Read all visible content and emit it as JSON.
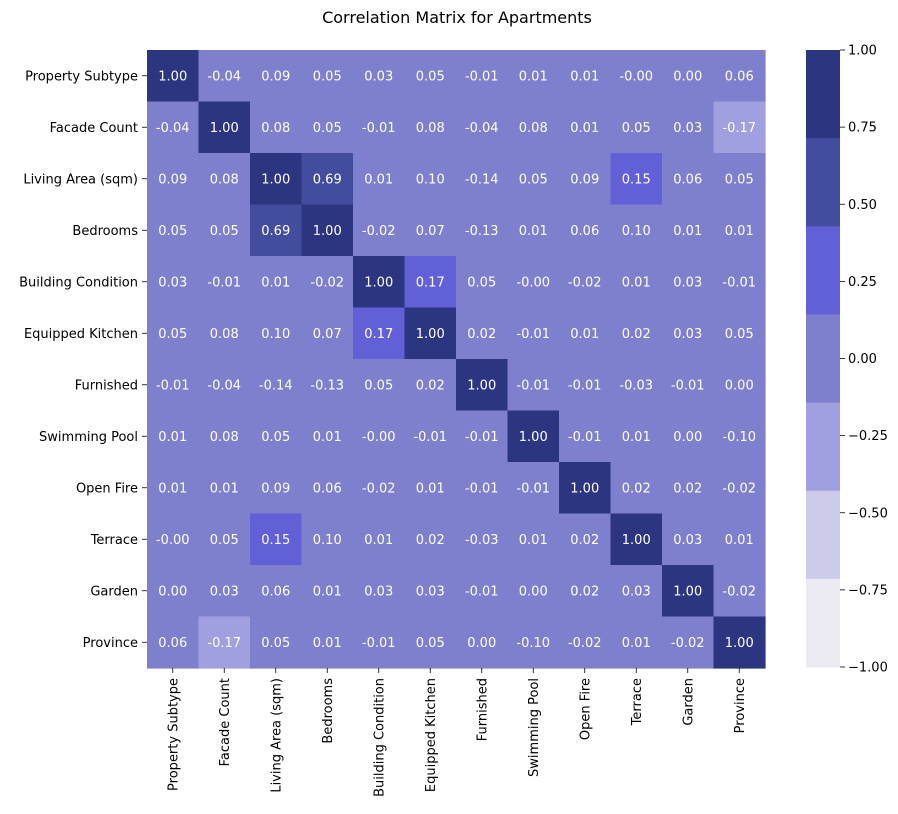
{
  "chart_data": {
    "type": "heatmap",
    "title": "Correlation Matrix for Apartments",
    "xlabel": "",
    "ylabel": "",
    "labels": [
      "Property Subtype",
      "Facade Count",
      "Living Area (sqm)",
      "Bedrooms",
      "Building Condition",
      "Equipped Kitchen",
      "Furnished",
      "Swimming Pool",
      "Open Fire",
      "Terrace",
      "Garden",
      "Province"
    ],
    "value_labels": [
      [
        "1.00",
        "-0.04",
        "0.09",
        "0.05",
        "0.03",
        "0.05",
        "-0.01",
        "0.01",
        "0.01",
        "-0.00",
        "0.00",
        "0.06"
      ],
      [
        "-0.04",
        "1.00",
        "0.08",
        "0.05",
        "-0.01",
        "0.08",
        "-0.04",
        "0.08",
        "0.01",
        "0.05",
        "0.03",
        "-0.17"
      ],
      [
        "0.09",
        "0.08",
        "1.00",
        "0.69",
        "0.01",
        "0.10",
        "-0.14",
        "0.05",
        "0.09",
        "0.15",
        "0.06",
        "0.05"
      ],
      [
        "0.05",
        "0.05",
        "0.69",
        "1.00",
        "-0.02",
        "0.07",
        "-0.13",
        "0.01",
        "0.06",
        "0.10",
        "0.01",
        "0.01"
      ],
      [
        "0.03",
        "-0.01",
        "0.01",
        "-0.02",
        "1.00",
        "0.17",
        "0.05",
        "-0.00",
        "-0.02",
        "0.01",
        "0.03",
        "-0.01"
      ],
      [
        "0.05",
        "0.08",
        "0.10",
        "0.07",
        "0.17",
        "1.00",
        "0.02",
        "-0.01",
        "0.01",
        "0.02",
        "0.03",
        "0.05"
      ],
      [
        "-0.01",
        "-0.04",
        "-0.14",
        "-0.13",
        "0.05",
        "0.02",
        "1.00",
        "-0.01",
        "-0.01",
        "-0.03",
        "-0.01",
        "0.00"
      ],
      [
        "0.01",
        "0.08",
        "0.05",
        "0.01",
        "-0.00",
        "-0.01",
        "-0.01",
        "1.00",
        "-0.01",
        "0.01",
        "0.00",
        "-0.10"
      ],
      [
        "0.01",
        "0.01",
        "0.09",
        "0.06",
        "-0.02",
        "0.01",
        "-0.01",
        "-0.01",
        "1.00",
        "0.02",
        "0.02",
        "-0.02"
      ],
      [
        "-0.00",
        "0.05",
        "0.15",
        "0.10",
        "0.01",
        "0.02",
        "-0.03",
        "0.01",
        "0.02",
        "1.00",
        "0.03",
        "0.01"
      ],
      [
        "0.00",
        "0.03",
        "0.06",
        "0.01",
        "0.03",
        "0.03",
        "-0.01",
        "0.00",
        "0.02",
        "0.03",
        "1.00",
        "-0.02"
      ],
      [
        "0.06",
        "-0.17",
        "0.05",
        "0.01",
        "-0.01",
        "0.05",
        "0.00",
        "-0.10",
        "-0.02",
        "0.01",
        "-0.02",
        "1.00"
      ]
    ],
    "vmin": -1.0,
    "vmax": 1.0,
    "colorbar": {
      "ticks": [
        "1.00",
        "0.75",
        "0.50",
        "0.25",
        "0.00",
        "−0.25",
        "−0.50",
        "−0.75",
        "−1.00"
      ],
      "bins": [
        {
          "from": 0.7143,
          "to": 1.0,
          "color": "#2c3580"
        },
        {
          "from": 0.4286,
          "to": 0.7143,
          "color": "#434d9e"
        },
        {
          "from": 0.1429,
          "to": 0.4286,
          "color": "#6160d6"
        },
        {
          "from": -0.1429,
          "to": 0.1429,
          "color": "#7f80cd"
        },
        {
          "from": -0.4286,
          "to": -0.1429,
          "color": "#a09fe0"
        },
        {
          "from": -0.7143,
          "to": -0.4286,
          "color": "#cccbe9"
        },
        {
          "from": -1.0,
          "to": -0.7143,
          "color": "#ebeaf3"
        }
      ]
    }
  }
}
